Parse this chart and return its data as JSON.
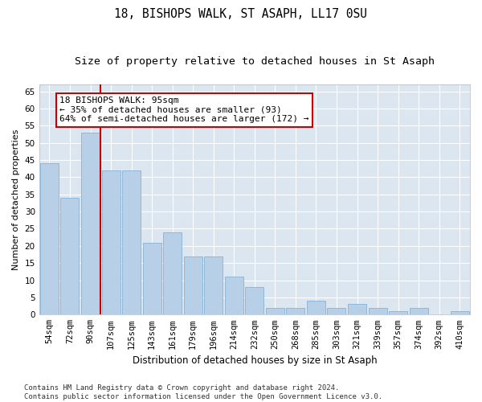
{
  "title1": "18, BISHOPS WALK, ST ASAPH, LL17 0SU",
  "title2": "Size of property relative to detached houses in St Asaph",
  "xlabel": "Distribution of detached houses by size in St Asaph",
  "ylabel": "Number of detached properties",
  "categories": [
    "54sqm",
    "72sqm",
    "90sqm",
    "107sqm",
    "125sqm",
    "143sqm",
    "161sqm",
    "179sqm",
    "196sqm",
    "214sqm",
    "232sqm",
    "250sqm",
    "268sqm",
    "285sqm",
    "303sqm",
    "321sqm",
    "339sqm",
    "357sqm",
    "374sqm",
    "392sqm",
    "410sqm"
  ],
  "values": [
    44,
    34,
    53,
    42,
    42,
    21,
    24,
    17,
    17,
    11,
    8,
    2,
    2,
    4,
    2,
    3,
    2,
    1,
    2,
    0,
    1
  ],
  "bar_color": "#b8cfe8",
  "bar_edge_color": "#7aaad0",
  "vline_x_index": 2,
  "vline_color": "#cc0000",
  "annotation_text": "18 BISHOPS WALK: 95sqm\n← 35% of detached houses are smaller (93)\n64% of semi-detached houses are larger (172) →",
  "annotation_box_color": "#ffffff",
  "annotation_border_color": "#cc0000",
  "ylim": [
    0,
    67
  ],
  "yticks": [
    0,
    5,
    10,
    15,
    20,
    25,
    30,
    35,
    40,
    45,
    50,
    55,
    60,
    65
  ],
  "background_color": "#dce6f0",
  "grid_color": "#ffffff",
  "fig_background": "#ffffff",
  "footer_text": "Contains HM Land Registry data © Crown copyright and database right 2024.\nContains public sector information licensed under the Open Government Licence v3.0.",
  "title1_fontsize": 10.5,
  "title2_fontsize": 9.5,
  "xlabel_fontsize": 8.5,
  "ylabel_fontsize": 8,
  "tick_fontsize": 7.5,
  "annotation_fontsize": 8,
  "footer_fontsize": 6.5
}
